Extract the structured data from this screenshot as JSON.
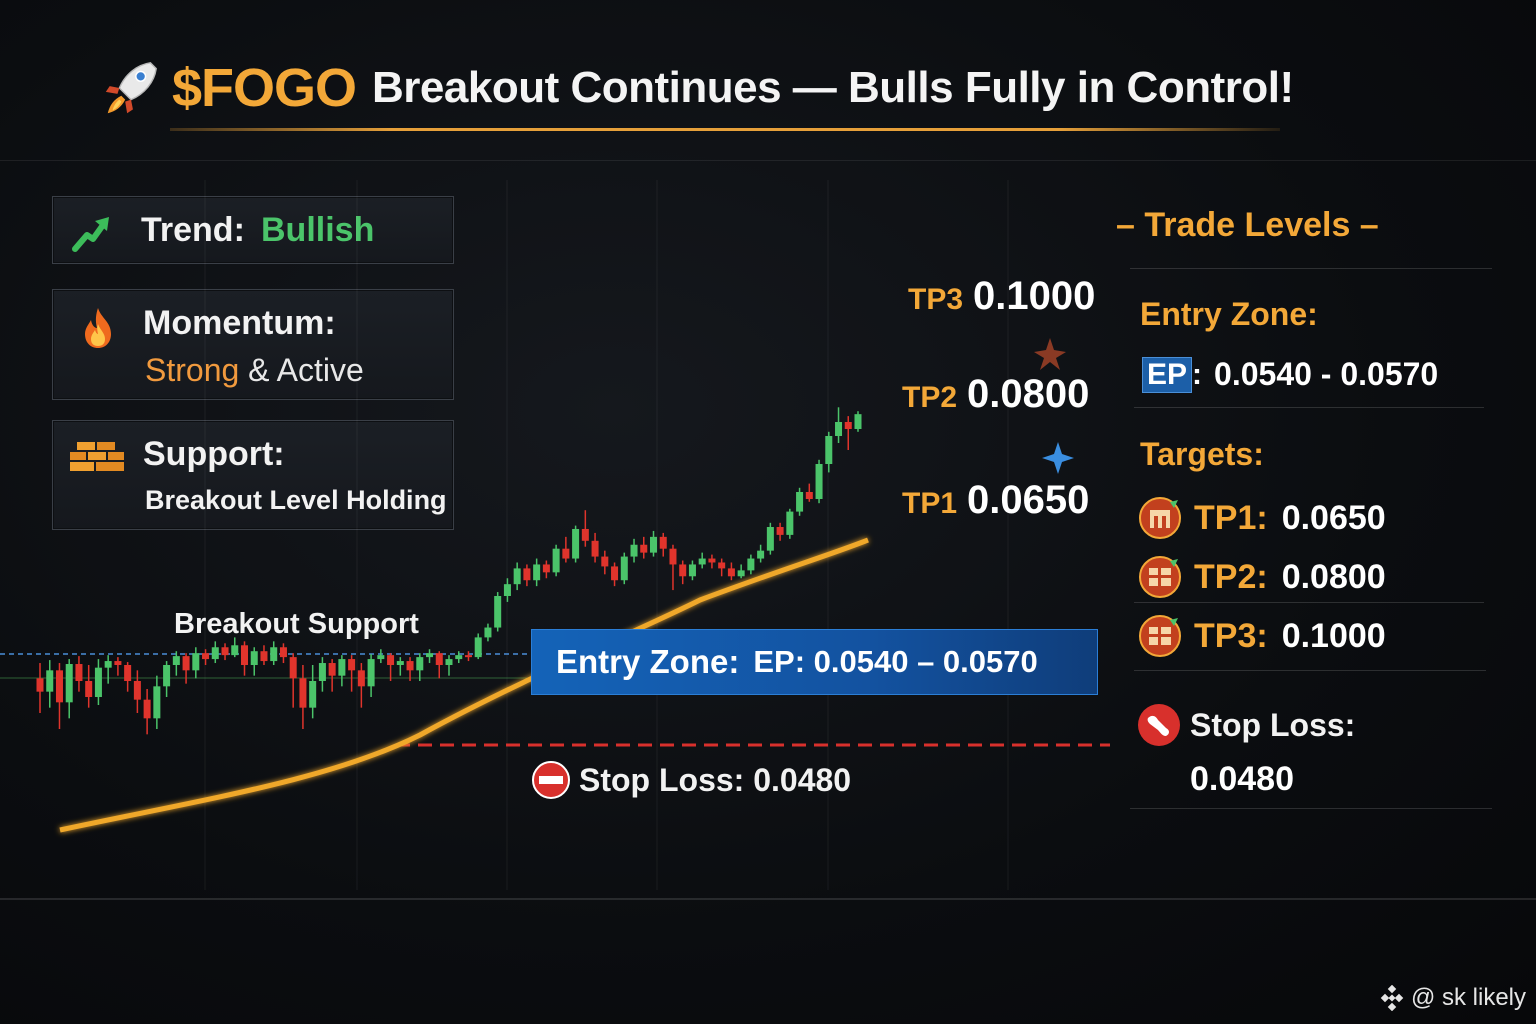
{
  "header": {
    "ticker": "$FOGO",
    "title": "Breakout Continues — Bulls Fully in Control!"
  },
  "cards": {
    "trend": {
      "label": "Trend:",
      "value": "Bullish"
    },
    "momentum": {
      "label": "Momentum:",
      "value_strong": "Strong",
      "value_rest": "& Active"
    },
    "support": {
      "label": "Support:",
      "value": "Breakout Level Holding"
    }
  },
  "chart_labels": {
    "tp3_tag": "TP3",
    "tp3_value": "0.1000",
    "tp2_tag": "TP2",
    "tp2_value": "0.0800",
    "tp1_tag": "TP1",
    "tp1_value": "0.0650",
    "breakout_support": "Breakout Support",
    "entry_banner_label": "Entry Zone:",
    "entry_banner_value": "EP: 0.0540 – 0.0570",
    "stop_loss": "Stop Loss: 0.0480"
  },
  "panel": {
    "title": "– Trade Levels –",
    "entry_zone_heading": "Entry Zone:",
    "ep_badge": "EP",
    "ep_colon": ":",
    "ep_value": "0.0540 - 0.0570",
    "targets_heading": "Targets:",
    "targets": [
      {
        "name": "TP1:",
        "value": "0.0650"
      },
      {
        "name": "TP2:",
        "value": "0.0800"
      },
      {
        "name": "TP3:",
        "value": "0.1000"
      }
    ],
    "stop_loss_label": "Stop Loss:",
    "stop_loss_value": "0.0480"
  },
  "watermark": "@ sk likely",
  "colors": {
    "accent": "#f3a838",
    "bullish": "#4bc46a",
    "bearish": "#e0342c",
    "entry_blue": "#1463b8",
    "stop_red": "#d8302c"
  },
  "chart_data": {
    "type": "candlestick",
    "title": "$FOGO Breakout Continues — Bulls Fully in Control!",
    "levels": {
      "tp3": 0.1,
      "tp2": 0.08,
      "tp1": 0.065,
      "entry_low": 0.054,
      "entry_high": 0.057,
      "stop_loss": 0.048
    },
    "candles": [
      {
        "o": 0.0505,
        "c": 0.05,
        "h": 0.0512,
        "l": 0.0492
      },
      {
        "o": 0.05,
        "c": 0.0508,
        "h": 0.0515,
        "l": 0.0494
      },
      {
        "o": 0.0508,
        "c": 0.0496,
        "h": 0.0512,
        "l": 0.0486
      },
      {
        "o": 0.0496,
        "c": 0.0511,
        "h": 0.0516,
        "l": 0.049
      },
      {
        "o": 0.0511,
        "c": 0.0504,
        "h": 0.0519,
        "l": 0.05
      },
      {
        "o": 0.0504,
        "c": 0.0498,
        "h": 0.051,
        "l": 0.0494
      },
      {
        "o": 0.0498,
        "c": 0.0509,
        "h": 0.0516,
        "l": 0.0495
      },
      {
        "o": 0.0509,
        "c": 0.0514,
        "h": 0.052,
        "l": 0.0503
      },
      {
        "o": 0.0514,
        "c": 0.051,
        "h": 0.0518,
        "l": 0.0506
      },
      {
        "o": 0.051,
        "c": 0.0504,
        "h": 0.0513,
        "l": 0.05
      },
      {
        "o": 0.0504,
        "c": 0.0497,
        "h": 0.0508,
        "l": 0.0492
      },
      {
        "o": 0.0497,
        "c": 0.049,
        "h": 0.0501,
        "l": 0.0484
      },
      {
        "o": 0.049,
        "c": 0.0502,
        "h": 0.0506,
        "l": 0.0486
      },
      {
        "o": 0.0502,
        "c": 0.051,
        "h": 0.0514,
        "l": 0.0498
      },
      {
        "o": 0.051,
        "c": 0.0519,
        "h": 0.0524,
        "l": 0.0506
      },
      {
        "o": 0.0519,
        "c": 0.0508,
        "h": 0.0522,
        "l": 0.0503
      },
      {
        "o": 0.0508,
        "c": 0.0522,
        "h": 0.0528,
        "l": 0.0505
      },
      {
        "o": 0.0522,
        "c": 0.0516,
        "h": 0.0526,
        "l": 0.051
      },
      {
        "o": 0.0516,
        "c": 0.0528,
        "h": 0.0534,
        "l": 0.0512
      },
      {
        "o": 0.0528,
        "c": 0.052,
        "h": 0.0532,
        "l": 0.0515
      },
      {
        "o": 0.052,
        "c": 0.053,
        "h": 0.0538,
        "l": 0.0518
      },
      {
        "o": 0.053,
        "c": 0.051,
        "h": 0.0534,
        "l": 0.0506
      },
      {
        "o": 0.051,
        "c": 0.0524,
        "h": 0.0528,
        "l": 0.0506
      },
      {
        "o": 0.0524,
        "c": 0.0514,
        "h": 0.053,
        "l": 0.051
      },
      {
        "o": 0.0514,
        "c": 0.0528,
        "h": 0.0534,
        "l": 0.051
      },
      {
        "o": 0.0528,
        "c": 0.0518,
        "h": 0.0532,
        "l": 0.0512
      },
      {
        "o": 0.0518,
        "c": 0.0505,
        "h": 0.0522,
        "l": 0.0494
      },
      {
        "o": 0.0505,
        "c": 0.0494,
        "h": 0.051,
        "l": 0.0486
      },
      {
        "o": 0.0494,
        "c": 0.0504,
        "h": 0.051,
        "l": 0.049
      },
      {
        "o": 0.0504,
        "c": 0.0512,
        "h": 0.0518,
        "l": 0.05
      },
      {
        "o": 0.0512,
        "c": 0.0506,
        "h": 0.0516,
        "l": 0.05
      },
      {
        "o": 0.0506,
        "c": 0.0516,
        "h": 0.052,
        "l": 0.0502
      },
      {
        "o": 0.0516,
        "c": 0.0508,
        "h": 0.052,
        "l": 0.05
      },
      {
        "o": 0.0508,
        "c": 0.0502,
        "h": 0.0512,
        "l": 0.0494
      },
      {
        "o": 0.0502,
        "c": 0.0516,
        "h": 0.0521,
        "l": 0.0498
      },
      {
        "o": 0.0516,
        "c": 0.052,
        "h": 0.0526,
        "l": 0.0512
      },
      {
        "o": 0.052,
        "c": 0.051,
        "h": 0.0522,
        "l": 0.0504
      },
      {
        "o": 0.051,
        "c": 0.0514,
        "h": 0.0518,
        "l": 0.0506
      },
      {
        "o": 0.0514,
        "c": 0.0508,
        "h": 0.0518,
        "l": 0.0504
      },
      {
        "o": 0.0508,
        "c": 0.0518,
        "h": 0.0522,
        "l": 0.0504
      },
      {
        "o": 0.0518,
        "c": 0.0522,
        "h": 0.0526,
        "l": 0.0512
      },
      {
        "o": 0.0522,
        "c": 0.051,
        "h": 0.0524,
        "l": 0.0505
      },
      {
        "o": 0.051,
        "c": 0.0516,
        "h": 0.052,
        "l": 0.0506
      },
      {
        "o": 0.0516,
        "c": 0.052,
        "h": 0.0524,
        "l": 0.0512
      },
      {
        "o": 0.052,
        "c": 0.0518,
        "h": 0.0524,
        "l": 0.0514
      },
      {
        "o": 0.0518,
        "c": 0.0538,
        "h": 0.0542,
        "l": 0.0516
      },
      {
        "o": 0.0538,
        "c": 0.0548,
        "h": 0.0552,
        "l": 0.0534
      },
      {
        "o": 0.0548,
        "c": 0.058,
        "h": 0.0584,
        "l": 0.0544
      },
      {
        "o": 0.058,
        "c": 0.0592,
        "h": 0.0598,
        "l": 0.0574
      },
      {
        "o": 0.0592,
        "c": 0.0608,
        "h": 0.0614,
        "l": 0.0586
      },
      {
        "o": 0.0608,
        "c": 0.0596,
        "h": 0.0612,
        "l": 0.059
      },
      {
        "o": 0.0596,
        "c": 0.0612,
        "h": 0.0618,
        "l": 0.059
      },
      {
        "o": 0.0612,
        "c": 0.0604,
        "h": 0.0616,
        "l": 0.0598
      },
      {
        "o": 0.0604,
        "c": 0.0628,
        "h": 0.0632,
        "l": 0.06
      },
      {
        "o": 0.0628,
        "c": 0.0618,
        "h": 0.064,
        "l": 0.0614
      },
      {
        "o": 0.0618,
        "c": 0.0648,
        "h": 0.0652,
        "l": 0.0614
      },
      {
        "o": 0.0648,
        "c": 0.0636,
        "h": 0.0674,
        "l": 0.063
      },
      {
        "o": 0.0636,
        "c": 0.062,
        "h": 0.0644,
        "l": 0.0614
      },
      {
        "o": 0.062,
        "c": 0.061,
        "h": 0.0626,
        "l": 0.0602
      },
      {
        "o": 0.061,
        "c": 0.0596,
        "h": 0.0614,
        "l": 0.059
      },
      {
        "o": 0.0596,
        "c": 0.062,
        "h": 0.0624,
        "l": 0.0592
      },
      {
        "o": 0.062,
        "c": 0.0632,
        "h": 0.0638,
        "l": 0.0614
      },
      {
        "o": 0.0632,
        "c": 0.0624,
        "h": 0.064,
        "l": 0.0618
      },
      {
        "o": 0.0624,
        "c": 0.064,
        "h": 0.0646,
        "l": 0.062
      },
      {
        "o": 0.064,
        "c": 0.0628,
        "h": 0.0644,
        "l": 0.062
      },
      {
        "o": 0.0628,
        "c": 0.0612,
        "h": 0.0632,
        "l": 0.0586
      },
      {
        "o": 0.0612,
        "c": 0.06,
        "h": 0.0616,
        "l": 0.0592
      },
      {
        "o": 0.06,
        "c": 0.0612,
        "h": 0.0616,
        "l": 0.0596
      },
      {
        "o": 0.0612,
        "c": 0.0618,
        "h": 0.0624,
        "l": 0.0608
      },
      {
        "o": 0.0618,
        "c": 0.0614,
        "h": 0.0622,
        "l": 0.0608
      },
      {
        "o": 0.0614,
        "c": 0.0608,
        "h": 0.0618,
        "l": 0.06
      },
      {
        "o": 0.0608,
        "c": 0.06,
        "h": 0.0614,
        "l": 0.0596
      },
      {
        "o": 0.06,
        "c": 0.0606,
        "h": 0.0612,
        "l": 0.0598
      },
      {
        "o": 0.0606,
        "c": 0.0618,
        "h": 0.0622,
        "l": 0.0602
      },
      {
        "o": 0.0618,
        "c": 0.0626,
        "h": 0.0632,
        "l": 0.0614
      },
      {
        "o": 0.0626,
        "c": 0.065,
        "h": 0.0656,
        "l": 0.0622
      },
      {
        "o": 0.065,
        "c": 0.0642,
        "h": 0.0656,
        "l": 0.0636
      },
      {
        "o": 0.0642,
        "c": 0.0672,
        "h": 0.0676,
        "l": 0.0638
      },
      {
        "o": 0.0672,
        "c": 0.07,
        "h": 0.0706,
        "l": 0.0666
      },
      {
        "o": 0.07,
        "c": 0.069,
        "h": 0.0712,
        "l": 0.0686
      },
      {
        "o": 0.069,
        "c": 0.074,
        "h": 0.0746,
        "l": 0.0684
      },
      {
        "o": 0.074,
        "c": 0.078,
        "h": 0.0786,
        "l": 0.0728
      },
      {
        "o": 0.078,
        "c": 0.08,
        "h": 0.083,
        "l": 0.077
      },
      {
        "o": 0.08,
        "c": 0.079,
        "h": 0.0812,
        "l": 0.076
      },
      {
        "o": 0.079,
        "c": 0.0816,
        "h": 0.0822,
        "l": 0.0786
      }
    ]
  }
}
